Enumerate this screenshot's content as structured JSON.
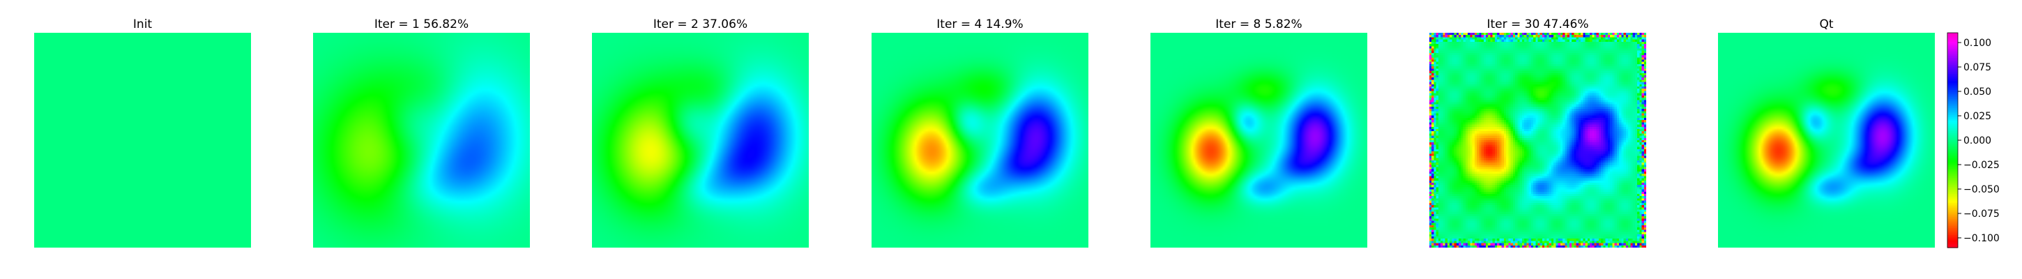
{
  "chart_data": {
    "type": "heatmap",
    "colormap": "gist_rainbow",
    "panels": [
      {
        "title": "Init",
        "stage": 0.0,
        "noisy_border": false,
        "flat_color": "#00ff80"
      },
      {
        "title": "Iter = 1    56.82%",
        "stage": 0.45,
        "noisy_border": false
      },
      {
        "title": "Iter = 2    37.06%",
        "stage": 0.65,
        "noisy_border": false
      },
      {
        "title": "Iter = 4    14.9%",
        "stage": 0.85,
        "noisy_border": false
      },
      {
        "title": "Iter = 8    5.82%",
        "stage": 0.97,
        "noisy_border": false
      },
      {
        "title": "Iter = 30    47.46%",
        "stage": 1.0,
        "noisy_border": true
      },
      {
        "title": "Qt",
        "stage": 1.0,
        "noisy_border": false
      }
    ],
    "colorbar": {
      "vmin": -0.11,
      "vmax": 0.11,
      "ticks": [
        -0.1,
        -0.075,
        -0.05,
        -0.025,
        0.0,
        0.025,
        0.05,
        0.075,
        0.1
      ],
      "tick_labels": [
        "−0.100",
        "−0.075",
        "−0.050",
        "−0.025",
        "0.000",
        "0.025",
        "0.050",
        "0.075",
        "0.100"
      ]
    },
    "field_features": [
      {
        "name": "negative-left-blob",
        "cx": 0.28,
        "cy": 0.55,
        "sx": 0.095,
        "sy": 0.12,
        "amp": -0.095
      },
      {
        "name": "negative-top-blob",
        "cx": 0.53,
        "cy": 0.27,
        "sx": 0.09,
        "sy": 0.06,
        "amp": -0.028
      },
      {
        "name": "positive-right-blob",
        "cx": 0.76,
        "cy": 0.48,
        "sx": 0.085,
        "sy": 0.12,
        "amp": 0.085
      },
      {
        "name": "positive-small-blob",
        "cx": 0.44,
        "cy": 0.42,
        "sx": 0.05,
        "sy": 0.06,
        "amp": 0.04
      },
      {
        "name": "positive-lower-blob",
        "cx": 0.52,
        "cy": 0.72,
        "sx": 0.08,
        "sy": 0.05,
        "amp": 0.035
      },
      {
        "name": "positive-lower-right-blob",
        "cx": 0.66,
        "cy": 0.62,
        "sx": 0.07,
        "sy": 0.05,
        "amp": 0.03
      }
    ],
    "grid": false,
    "legend": "colorbar-right"
  }
}
